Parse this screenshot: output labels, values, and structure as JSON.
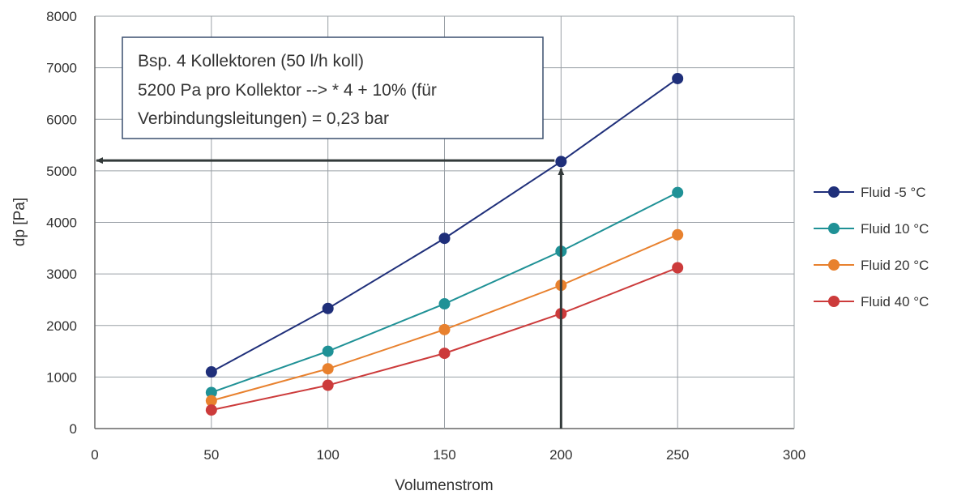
{
  "chart_data": {
    "type": "line",
    "xlabel": "Volumenstrom",
    "ylabel": "dp [Pa]",
    "xlim": [
      0,
      300
    ],
    "ylim": [
      0,
      8000
    ],
    "x_ticks": [
      0,
      50,
      100,
      150,
      200,
      250,
      300
    ],
    "y_ticks": [
      0,
      1000,
      2000,
      3000,
      4000,
      5000,
      6000,
      7000,
      8000
    ],
    "grid": true,
    "legend_position": "right",
    "x": [
      50,
      100,
      150,
      200,
      250
    ],
    "series": [
      {
        "name": "Fluid -5 °C",
        "color": "#1f2f7a",
        "values": [
          1100,
          2330,
          3690,
          5180,
          6790
        ]
      },
      {
        "name": "Fluid 10 °C",
        "color": "#1f9196",
        "values": [
          700,
          1500,
          2420,
          3440,
          4580
        ]
      },
      {
        "name": "Fluid 20 °C",
        "color": "#e8812e",
        "values": [
          540,
          1160,
          1920,
          2780,
          3760
        ]
      },
      {
        "name": "Fluid 40 °C",
        "color": "#cc3b3b",
        "values": [
          360,
          840,
          1460,
          2230,
          3120
        ]
      }
    ],
    "annotation": {
      "lines": [
        "Bsp. 4 Kollektoren (50 l/h koll)",
        "5200 Pa pro Kollektor --> * 4 + 10% (für",
        "Verbindungsleitungen) = 0,23 bar"
      ],
      "marker_x": 200,
      "marker_y": 5200,
      "arrow_color": "#333a3a",
      "box_border_color": "#3a4f6e"
    },
    "grid_color": "#9aa0a6",
    "axis_color": "#666666"
  }
}
